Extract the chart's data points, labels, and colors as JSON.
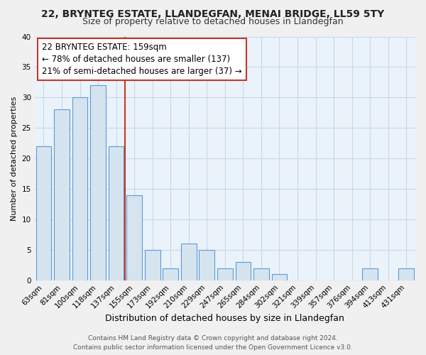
{
  "title": "22, BRYNTEG ESTATE, LLANDEGFAN, MENAI BRIDGE, LL59 5TY",
  "subtitle": "Size of property relative to detached houses in Llandegfan",
  "xlabel": "Distribution of detached houses by size in Llandegfan",
  "ylabel": "Number of detached properties",
  "bar_labels": [
    "63sqm",
    "81sqm",
    "100sqm",
    "118sqm",
    "137sqm",
    "155sqm",
    "173sqm",
    "192sqm",
    "210sqm",
    "229sqm",
    "247sqm",
    "265sqm",
    "284sqm",
    "302sqm",
    "321sqm",
    "339sqm",
    "357sqm",
    "376sqm",
    "394sqm",
    "413sqm",
    "431sqm"
  ],
  "bar_values": [
    22,
    28,
    30,
    32,
    22,
    14,
    5,
    2,
    6,
    5,
    2,
    3,
    2,
    1,
    0,
    0,
    0,
    0,
    2,
    0,
    2
  ],
  "bar_color": "#d6e4f0",
  "bar_edge_color": "#5b9bd5",
  "highlight_bar_index": 5,
  "vline_index": 5,
  "vline_color": "#c0392b",
  "annotation_line1": "22 BRYNTEG ESTATE: 159sqm",
  "annotation_line2": "← 78% of detached houses are smaller (137)",
  "annotation_line3": "21% of semi-detached houses are larger (37) →",
  "annotation_box_edge_color": "#c0392b",
  "ylim": [
    0,
    40
  ],
  "yticks": [
    0,
    5,
    10,
    15,
    20,
    25,
    30,
    35,
    40
  ],
  "title_fontsize": 10,
  "subtitle_fontsize": 9,
  "xlabel_fontsize": 9,
  "ylabel_fontsize": 8,
  "tick_fontsize": 7.5,
  "annotation_fontsize": 8.5,
  "footer_fontsize": 6.5,
  "footer_line1": "Contains HM Land Registry data © Crown copyright and database right 2024.",
  "footer_line2": "Contains public sector information licensed under the Open Government Licence v3.0.",
  "background_color": "#f0f0f0",
  "plot_bg_color": "#eaf2fa",
  "grid_color": "#c8d8e8"
}
